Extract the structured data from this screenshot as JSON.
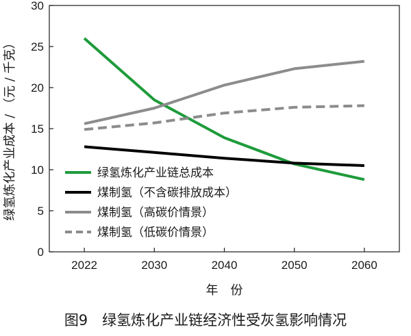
{
  "caption": "图9　绿氢炼化产业链经济性受灰氢影响情况",
  "chart_data": {
    "type": "line",
    "xlabel": "年　份",
    "ylabel": "绿氢炼化产业成本 / （元 / 千克）",
    "categories": [
      "2022",
      "2030",
      "2040",
      "2050",
      "2060"
    ],
    "ylim": [
      0,
      30
    ],
    "yticks": [
      0,
      5,
      10,
      15,
      20,
      25,
      30
    ],
    "grid": false,
    "legend_position": "lower-left",
    "series": [
      {
        "name": "绿氢炼化产业链总成本",
        "values": [
          26.0,
          18.5,
          13.9,
          10.7,
          8.8
        ],
        "color": "#1e9b3b",
        "dash": "solid"
      },
      {
        "name": "煤制氢（不含碳排放成本）",
        "values": [
          12.8,
          12.1,
          11.4,
          10.8,
          10.5
        ],
        "color": "#000000",
        "dash": "solid"
      },
      {
        "name": "煤制氢（高碳价情景）",
        "values": [
          15.6,
          17.5,
          20.3,
          22.3,
          23.2
        ],
        "color": "#8c8c8c",
        "dash": "solid"
      },
      {
        "name": "煤制氢（低碳价情景）",
        "values": [
          14.9,
          15.7,
          16.9,
          17.6,
          17.8
        ],
        "color": "#8c8c8c",
        "dash": "dashed"
      }
    ]
  }
}
